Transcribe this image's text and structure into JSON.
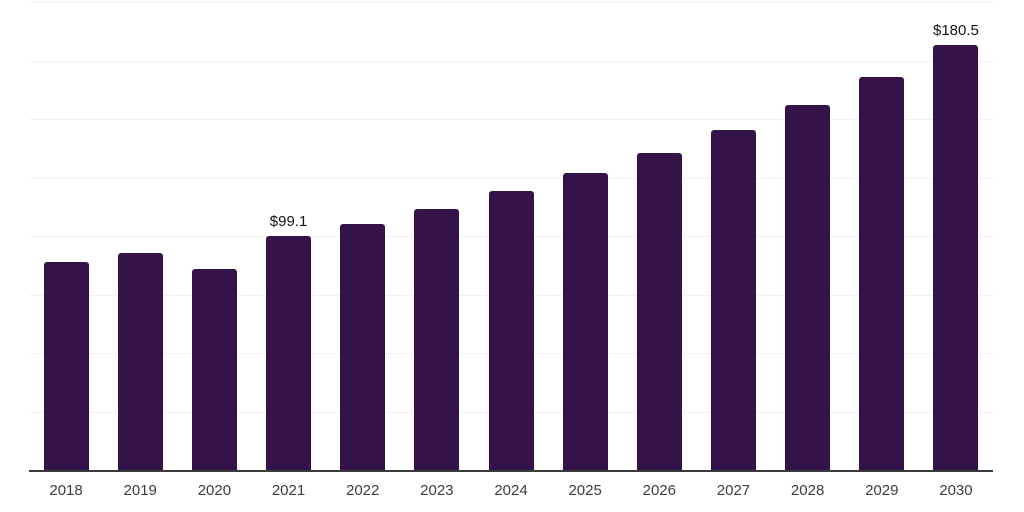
{
  "chart_data": {
    "type": "bar",
    "title": "",
    "xlabel": "",
    "ylabel": "",
    "categories": [
      "2018",
      "2019",
      "2020",
      "2021",
      "2022",
      "2023",
      "2024",
      "2025",
      "2026",
      "2027",
      "2028",
      "2029",
      "2030"
    ],
    "values": [
      88.4,
      92.0,
      85.3,
      99.1,
      104.4,
      110.8,
      118.3,
      125.9,
      134.4,
      144.4,
      154.9,
      166.7,
      180.5
    ],
    "data_labels": {
      "2021": "$99.1",
      "2030": "$180.5"
    },
    "ylim": [
      0,
      198.6
    ],
    "y_axis_tick_labels": "none",
    "legend": "none",
    "gridlines": {
      "orientation": "horizontal",
      "count": 8,
      "labels_visible": false
    },
    "colors": {
      "bar": "#331349",
      "gridline": "#f2f2f2",
      "axis": "#3a3a3a",
      "tick_label": "#3d3d3d",
      "value_label": "#141414",
      "background": "#ffffff"
    }
  }
}
